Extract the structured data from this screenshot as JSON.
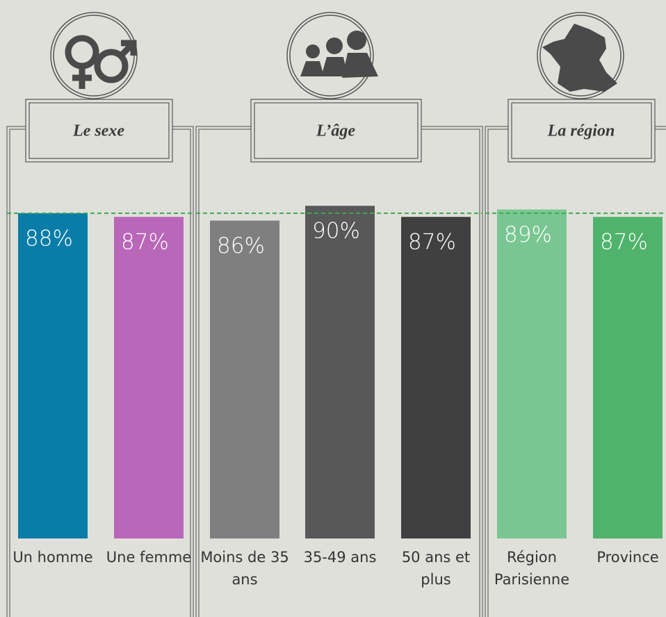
{
  "chart_data": [
    {
      "type": "bar",
      "title": "Le sexe",
      "categories": [
        "Un homme",
        "Une femme"
      ],
      "values": [
        88,
        87
      ],
      "value_labels": [
        "88%",
        "87%"
      ],
      "colors": [
        "#0a7ca8",
        "#b967b9"
      ],
      "reference_line": 88,
      "reference_color": "#3aaa55"
    },
    {
      "type": "bar",
      "title": "L’âge",
      "categories": [
        "Moins de 35 ans",
        "35-49 ans",
        "50 ans et plus"
      ],
      "values": [
        86,
        90,
        87
      ],
      "value_labels": [
        "86%",
        "90%",
        "87%"
      ],
      "colors": [
        "#7f7f7f",
        "#585858",
        "#404040"
      ],
      "reference_line": 88,
      "reference_color": "#3aaa55"
    },
    {
      "type": "bar",
      "title": "La région",
      "categories": [
        "Région Parisienne",
        "Province"
      ],
      "values": [
        89,
        87
      ],
      "value_labels": [
        "89%",
        "87%"
      ],
      "colors": [
        "#7ac692",
        "#4fb36b"
      ],
      "reference_line": 88,
      "reference_color": "#3aaa55"
    }
  ]
}
